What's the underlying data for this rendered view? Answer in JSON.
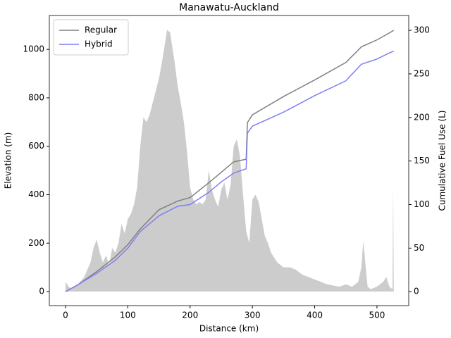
{
  "chart_data": {
    "type": "line",
    "title": "Manawatu-Auckland",
    "xlabel": "Distance (km)",
    "ylabel": "Elevation (m)",
    "y2label": "Cumulative Fuel Use (L)",
    "xlim": [
      -26,
      551
    ],
    "ylim": [
      -58,
      1140
    ],
    "y2lim": [
      -16,
      317
    ],
    "xticks": [
      0,
      100,
      200,
      300,
      400,
      500
    ],
    "yticks": [
      0,
      200,
      400,
      600,
      800,
      1000
    ],
    "y2ticks": [
      0,
      50,
      100,
      150,
      200,
      250,
      300
    ],
    "legend": "upper left",
    "series": [
      {
        "kind": "area",
        "color": "#cccccc",
        "x": [
          0,
          5,
          10,
          20,
          30,
          40,
          45,
          50,
          55,
          60,
          65,
          70,
          75,
          80,
          85,
          90,
          95,
          100,
          105,
          110,
          115,
          120,
          125,
          130,
          135,
          140,
          145,
          150,
          155,
          160,
          163,
          168,
          172,
          175,
          180,
          185,
          190,
          195,
          200,
          205,
          210,
          215,
          220,
          225,
          230,
          235,
          240,
          245,
          250,
          255,
          260,
          265,
          270,
          275,
          280,
          285,
          290,
          295,
          300,
          305,
          310,
          315,
          320,
          325,
          330,
          340,
          350,
          360,
          370,
          380,
          390,
          400,
          410,
          420,
          430,
          440,
          450,
          460,
          470,
          475,
          478,
          482,
          485,
          490,
          500,
          510,
          515,
          520,
          525,
          526,
          527
        ],
        "values": [
          40,
          20,
          10,
          30,
          60,
          120,
          180,
          215,
          160,
          120,
          150,
          110,
          180,
          160,
          200,
          280,
          240,
          300,
          320,
          360,
          430,
          600,
          720,
          700,
          730,
          780,
          830,
          880,
          950,
          1030,
          1080,
          1070,
          1000,
          950,
          850,
          780,
          700,
          580,
          430,
          380,
          360,
          370,
          360,
          380,
          500,
          420,
          380,
          350,
          420,
          450,
          380,
          440,
          600,
          630,
          560,
          400,
          250,
          200,
          380,
          400,
          370,
          300,
          230,
          200,
          160,
          120,
          100,
          100,
          90,
          70,
          60,
          50,
          40,
          30,
          25,
          20,
          30,
          20,
          40,
          100,
          210,
          100,
          20,
          10,
          20,
          40,
          60,
          20,
          10,
          440,
          0
        ]
      },
      {
        "name": "Regular",
        "color": "#808080",
        "axis": "y2",
        "x": [
          0,
          20,
          50,
          80,
          100,
          120,
          150,
          180,
          200,
          230,
          250,
          270,
          290,
          292,
          300,
          350,
          400,
          450,
          475,
          500,
          520,
          527
        ],
        "values": [
          0,
          8,
          23,
          40,
          54,
          72,
          94,
          104,
          108,
          125,
          137,
          149,
          152,
          194,
          203,
          224,
          243,
          263,
          281,
          289,
          297,
          300
        ]
      },
      {
        "name": "Hybrid",
        "color": "#7f7ff5",
        "axis": "y2",
        "x": [
          0,
          20,
          50,
          80,
          100,
          120,
          150,
          180,
          200,
          230,
          250,
          270,
          290,
          292,
          300,
          350,
          400,
          450,
          475,
          500,
          520,
          527
        ],
        "values": [
          0,
          8,
          21,
          36,
          50,
          69,
          87,
          98,
          100,
          114,
          126,
          136,
          141,
          182,
          190,
          206,
          225,
          242,
          261,
          267,
          274,
          276
        ]
      }
    ]
  }
}
